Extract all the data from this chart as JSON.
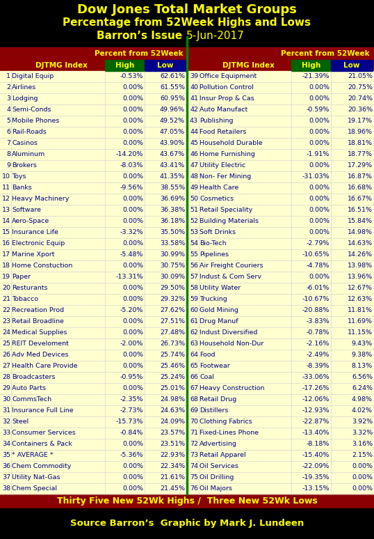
{
  "title1": "Dow Jones Total Market Groups",
  "title2": "Percentage from 52Week Highs and Lows",
  "title3_bold": "Barron’s Issue ",
  "title3_normal": "5-Jun-2017",
  "footer1": "Thirty Five New 52Wk Highs /  Three New 52Wk Lows",
  "footer2": "Source Barron’s  Graphic by Mark J. Lundeen",
  "header_col1": "DJTMG Index",
  "header_col2": "High",
  "header_col3": "Low",
  "subheader": "Percent from 52Week",
  "bg_color": "#000000",
  "header_bg": "#8B0000",
  "table_bg": "#FFFFD0",
  "title_color": "#FFFF00",
  "header_text_color": "#FFFF00",
  "col_high_bg": "#006400",
  "col_low_bg": "#00008B",
  "row_text_color": "#000080",
  "footer_color": "#FFFF00",
  "source_color": "#FFFF00",
  "separator_color": "#008000",
  "left_data": [
    [
      1,
      "Digital Equip",
      "-0.53%",
      "62.61%"
    ],
    [
      2,
      "Airlines",
      "0.00%",
      "61.55%"
    ],
    [
      3,
      "Lodging",
      "0.00%",
      "60.95%"
    ],
    [
      4,
      "Semi-Conds",
      "0.00%",
      "49.96%"
    ],
    [
      5,
      "Mobile Phones",
      "0.00%",
      "49.52%"
    ],
    [
      6,
      "Rail-Roads",
      "0.00%",
      "47.05%"
    ],
    [
      7,
      "Casinos",
      "0.00%",
      "43.90%"
    ],
    [
      8,
      "Aluminum",
      "-14.20%",
      "43.67%"
    ],
    [
      9,
      "Brokers",
      "-8.03%",
      "43.41%"
    ],
    [
      10,
      "Toys",
      "0.00%",
      "41.35%"
    ],
    [
      11,
      "Banks",
      "-9.56%",
      "38.55%"
    ],
    [
      12,
      "Heavy Machinery",
      "0.00%",
      "36.69%"
    ],
    [
      13,
      "Software",
      "0.00%",
      "36.38%"
    ],
    [
      14,
      "Aero-Space",
      "0.00%",
      "36.18%"
    ],
    [
      15,
      "Insurance Life",
      "-3.32%",
      "35.50%"
    ],
    [
      16,
      "Electronic Equip",
      "0.00%",
      "33.58%"
    ],
    [
      17,
      "Marine Xport",
      "-5.48%",
      "30.99%"
    ],
    [
      18,
      "Home Constuction",
      "0.00%",
      "30.75%"
    ],
    [
      19,
      "Paper",
      "-13.31%",
      "30.09%"
    ],
    [
      20,
      "Resturants",
      "0.00%",
      "29.50%"
    ],
    [
      21,
      "Tobacco",
      "0.00%",
      "29.32%"
    ],
    [
      22,
      "Recreation Prod",
      "-5.20%",
      "27.62%"
    ],
    [
      23,
      "Retail Broadline",
      "0.00%",
      "27.51%"
    ],
    [
      24,
      "Medical Supplies",
      "0.00%",
      "27.48%"
    ],
    [
      25,
      "REIT Develoment",
      "-2.00%",
      "26.73%"
    ],
    [
      26,
      "Adv Med Devices",
      "0.00%",
      "25.74%"
    ],
    [
      27,
      "Health Care Provide",
      "0.00%",
      "25.46%"
    ],
    [
      28,
      "Broadcasters",
      "-0.95%",
      "25.24%"
    ],
    [
      29,
      "Auto Parts",
      "0.00%",
      "25.01%"
    ],
    [
      30,
      "CommsTech",
      "-2.35%",
      "24.98%"
    ],
    [
      31,
      "Insurance Full Line",
      "-2.73%",
      "24.63%"
    ],
    [
      32,
      "Steel",
      "-15.73%",
      "24.09%"
    ],
    [
      33,
      "Consumer Services",
      "-0.84%",
      "23.57%"
    ],
    [
      34,
      "Containers & Pack",
      "0.00%",
      "23.51%"
    ],
    [
      35,
      "* AVERAGE *",
      "-5.36%",
      "22.93%"
    ],
    [
      36,
      "Chem Commodity",
      "0.00%",
      "22.34%"
    ],
    [
      37,
      "Utility Nat-Gas",
      "0.00%",
      "21.61%"
    ],
    [
      38,
      "Chem Special",
      "0.00%",
      "21.45%"
    ]
  ],
  "right_data": [
    [
      39,
      "Office Equipment",
      "-21.39%",
      "21.05%"
    ],
    [
      40,
      "Pollution Control",
      "0.00%",
      "20.75%"
    ],
    [
      41,
      "Insur Prop & Cas",
      "0.00%",
      "20.74%"
    ],
    [
      42,
      "Auto Manufact",
      "-0.59%",
      "20.36%"
    ],
    [
      43,
      "Publishing",
      "0.00%",
      "19.17%"
    ],
    [
      44,
      "Food Retailers",
      "0.00%",
      "18.96%"
    ],
    [
      45,
      "Household Durable",
      "0.00%",
      "18.81%"
    ],
    [
      46,
      "Home Furnishing",
      "-1.91%",
      "18.77%"
    ],
    [
      47,
      "Utility Electric",
      "0.00%",
      "17.29%"
    ],
    [
      48,
      "Non- Fer Mining",
      "-31.03%",
      "16.87%"
    ],
    [
      49,
      "Health Care",
      "0.00%",
      "16.68%"
    ],
    [
      50,
      "Cosmetics",
      "0.00%",
      "16.67%"
    ],
    [
      51,
      "Retail Speciality",
      "0.00%",
      "16.51%"
    ],
    [
      52,
      "Building Materials",
      "0.00%",
      "15.84%"
    ],
    [
      53,
      "Soft Drinks",
      "0.00%",
      "14.98%"
    ],
    [
      54,
      "Bio-Tech",
      "-2.79%",
      "14.63%"
    ],
    [
      55,
      "Pipelines",
      "-10.65%",
      "14.26%"
    ],
    [
      56,
      "Air Freight Couriers",
      "-4.78%",
      "13.98%"
    ],
    [
      57,
      "Indust & Com Serv",
      "0.00%",
      "13.96%"
    ],
    [
      58,
      "Utility Water",
      "-6.01%",
      "12.67%"
    ],
    [
      59,
      "Trucking",
      "-10.67%",
      "12.63%"
    ],
    [
      60,
      "Gold Mining",
      "-20.88%",
      "11.81%"
    ],
    [
      61,
      "Drug Manuf",
      "-3.83%",
      "11.69%"
    ],
    [
      62,
      "Indust Diversified",
      "-0.78%",
      "11.15%"
    ],
    [
      63,
      "Household Non-Dur",
      "-2.16%",
      "9.43%"
    ],
    [
      64,
      "Food",
      "-2.49%",
      "9.38%"
    ],
    [
      65,
      "Footwear",
      "-8.39%",
      "8.13%"
    ],
    [
      66,
      "Coal",
      "-33.06%",
      "6.56%"
    ],
    [
      67,
      "Heavy Construction",
      "-17.26%",
      "6.24%"
    ],
    [
      68,
      "Retail Drug",
      "-12.06%",
      "4.98%"
    ],
    [
      69,
      "Distillers",
      "-12.93%",
      "4.02%"
    ],
    [
      70,
      "Clothing Fabrics",
      "-22.87%",
      "3.92%"
    ],
    [
      71,
      "Fixed-Lines Phone",
      "-13.40%",
      "3.32%"
    ],
    [
      72,
      "Advertising",
      "-8.18%",
      "3.16%"
    ],
    [
      73,
      "Retail Apparel",
      "-15.40%",
      "2.15%"
    ],
    [
      74,
      "Oil Services",
      "-22.09%",
      "0.00%"
    ],
    [
      75,
      "Oil Drilling",
      "-19.35%",
      "0.00%"
    ],
    [
      76,
      "Oil Majors",
      "-13.15%",
      "0.00%"
    ]
  ]
}
